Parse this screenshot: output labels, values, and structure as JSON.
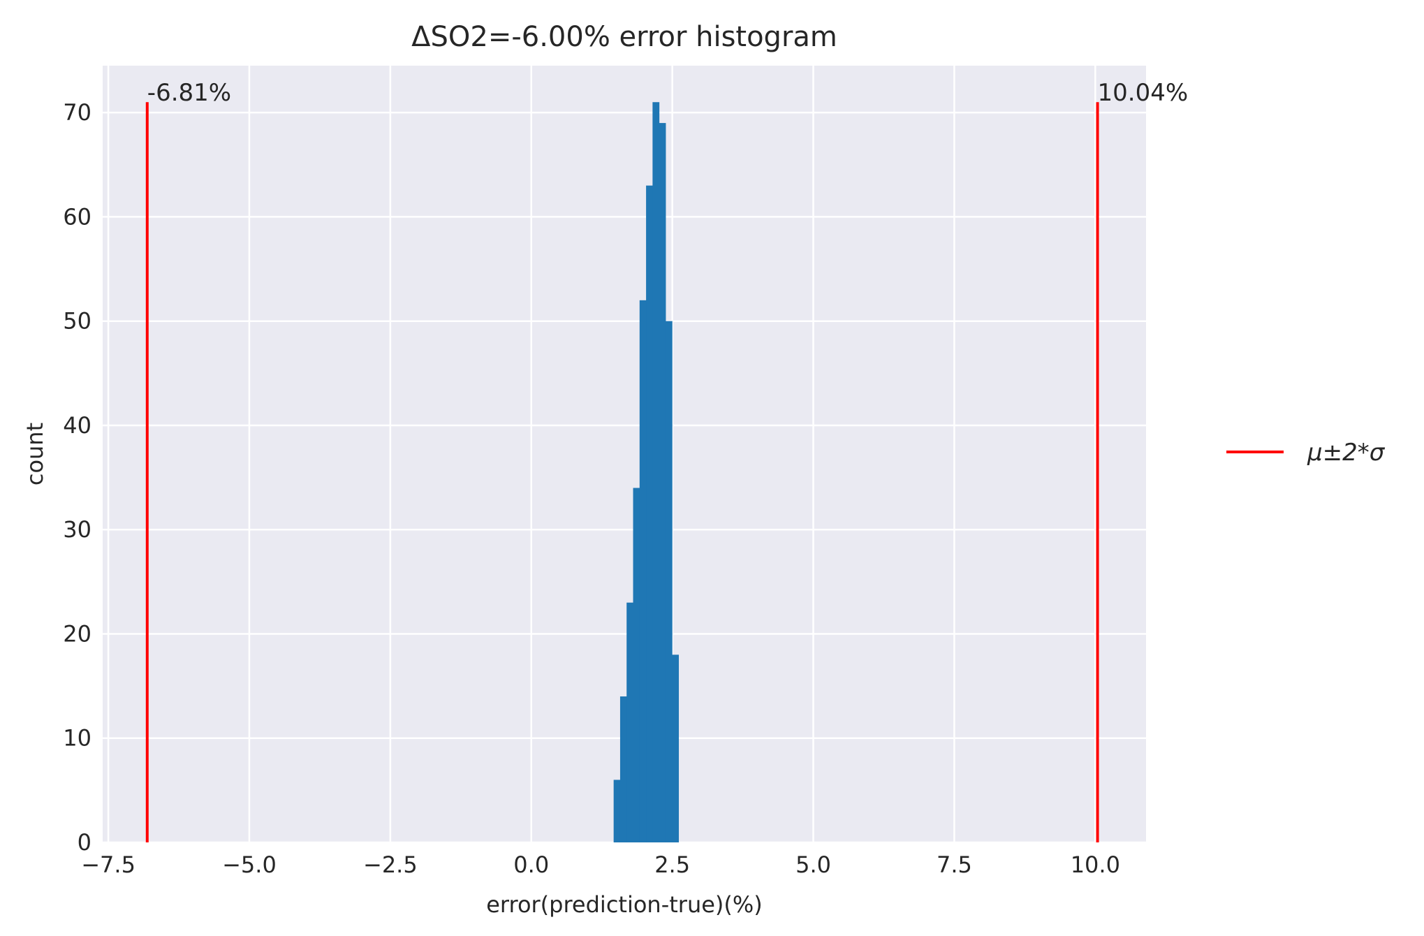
{
  "chart_data": {
    "type": "bar",
    "title": "ΔSO2=-6.00% error histogram",
    "xlabel": "error(prediction-true)(%)",
    "ylabel": "count",
    "xlim": [
      -7.6,
      10.9
    ],
    "ylim": [
      0,
      74.5
    ],
    "x_ticks": [
      -7.5,
      -5.0,
      -2.5,
      0.0,
      2.5,
      5.0,
      7.5,
      10.0
    ],
    "x_tick_labels": [
      "−7.5",
      "−5.0",
      "−2.5",
      "0.0",
      "2.5",
      "5.0",
      "7.5",
      "10.0"
    ],
    "y_ticks": [
      0,
      10,
      20,
      30,
      40,
      50,
      60,
      70
    ],
    "y_tick_labels": [
      "0",
      "10",
      "20",
      "30",
      "40",
      "50",
      "60",
      "70"
    ],
    "grid": true,
    "histogram": {
      "bin_edges": [
        1.46,
        1.575,
        1.69,
        1.805,
        1.92,
        2.035,
        2.15,
        2.265,
        2.38,
        2.495,
        2.61
      ],
      "counts": [
        6,
        14,
        23,
        34,
        52,
        63,
        71,
        69,
        50,
        18
      ],
      "color": "#1f77b4"
    },
    "reference_lines": {
      "x": [
        -6.81,
        10.04
      ],
      "height": 71,
      "color": "#ff0000",
      "labels": [
        "-6.81%",
        "10.04%"
      ]
    },
    "legend": {
      "placement": "outside-right",
      "entries": [
        {
          "label": "μ±2*σ",
          "color": "#ff0000"
        }
      ]
    },
    "background_color": "#eaeaf2"
  }
}
